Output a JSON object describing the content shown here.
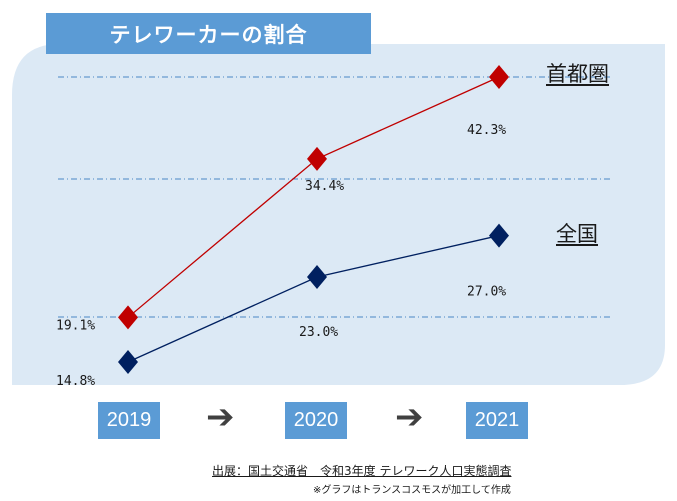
{
  "title": "テレワーカーの割合",
  "years": [
    "2019",
    "2020",
    "2021"
  ],
  "arrow_glyph": "➔",
  "source": "出展：国土交通省　令和3年度 テレワーク人口実態調査",
  "note": "※グラフはトランスコスモスが加工して作成",
  "colors": {
    "title_bg": "#5b9bd5",
    "panel_bg": "#dce9f5",
    "shutoken": "#c00000",
    "zenkoku": "#002060"
  },
  "chart_data": {
    "type": "line",
    "title": "テレワーカーの割合",
    "categories": [
      "2019",
      "2020",
      "2021"
    ],
    "series": [
      {
        "name": "首都圏",
        "values": [
          19.1,
          34.4,
          42.3
        ],
        "labels": [
          "19.1%",
          "34.4%",
          "42.3%"
        ],
        "color": "#c00000"
      },
      {
        "name": "全国",
        "values": [
          14.8,
          23.0,
          27.0
        ],
        "labels": [
          "14.8%",
          "23.0%",
          "27.0%"
        ],
        "color": "#002060"
      }
    ],
    "xlabel": "",
    "ylabel": "",
    "grid": true,
    "marker": "diamond"
  }
}
